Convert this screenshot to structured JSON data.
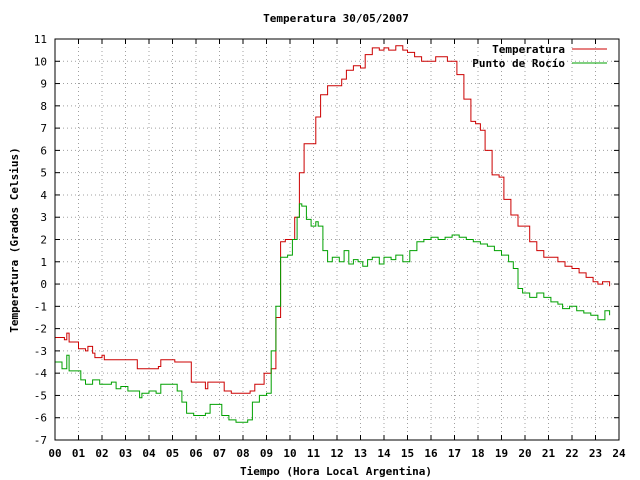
{
  "chart_data": {
    "type": "line",
    "title": "Temperatura 30/05/2007",
    "xlabel": "Tiempo (Hora Local Argentina)",
    "ylabel": "Temperatura (Grados Celsius)",
    "xlim": [
      0,
      24
    ],
    "ylim": [
      -7,
      11
    ],
    "x_ticks": [
      "00",
      "01",
      "02",
      "03",
      "04",
      "05",
      "06",
      "07",
      "08",
      "09",
      "10",
      "11",
      "12",
      "13",
      "14",
      "15",
      "16",
      "17",
      "18",
      "19",
      "20",
      "21",
      "22",
      "23",
      "24"
    ],
    "y_ticks": [
      -7,
      -6,
      -5,
      -4,
      -3,
      -2,
      -1,
      0,
      1,
      2,
      3,
      4,
      5,
      6,
      7,
      8,
      9,
      10,
      11
    ],
    "grid": true,
    "legend_position": "top-right",
    "series": [
      {
        "name": "Temperatura",
        "color": "#cc0000",
        "x": [
          0.0,
          0.4,
          0.5,
          0.6,
          0.9,
          1.0,
          1.3,
          1.4,
          1.6,
          1.7,
          2.0,
          2.1,
          2.6,
          3.0,
          3.5,
          4.0,
          4.4,
          4.5,
          5.0,
          5.1,
          5.5,
          5.8,
          6.2,
          6.4,
          6.5,
          7.0,
          7.2,
          7.5,
          7.8,
          8.1,
          8.3,
          8.5,
          8.9,
          9.2,
          9.4,
          9.6,
          9.8,
          10.0,
          10.2,
          10.4,
          10.6,
          10.9,
          11.1,
          11.3,
          11.6,
          11.9,
          12.2,
          12.4,
          12.7,
          13.0,
          13.2,
          13.5,
          13.8,
          14.0,
          14.2,
          14.5,
          14.8,
          15.0,
          15.3,
          15.6,
          15.9,
          16.2,
          16.4,
          16.7,
          16.9,
          17.1,
          17.4,
          17.7,
          17.9,
          18.1,
          18.3,
          18.6,
          18.9,
          19.1,
          19.4,
          19.7,
          19.9,
          20.2,
          20.5,
          20.8,
          21.1,
          21.4,
          21.7,
          22.0,
          22.3,
          22.6,
          22.9,
          23.1,
          23.3,
          23.5,
          23.6
        ],
        "y": [
          -2.4,
          -2.5,
          -2.2,
          -2.6,
          -2.6,
          -2.9,
          -3.0,
          -2.8,
          -3.1,
          -3.3,
          -3.2,
          -3.4,
          -3.4,
          -3.4,
          -3.8,
          -3.8,
          -3.7,
          -3.4,
          -3.4,
          -3.5,
          -3.5,
          -4.4,
          -4.4,
          -4.7,
          -4.4,
          -4.4,
          -4.8,
          -4.9,
          -4.9,
          -4.9,
          -4.8,
          -4.5,
          -4.0,
          -3.8,
          -1.5,
          1.9,
          2.0,
          2.0,
          3.0,
          5.0,
          6.3,
          6.3,
          7.5,
          8.5,
          8.9,
          8.9,
          9.2,
          9.6,
          9.8,
          9.7,
          10.3,
          10.6,
          10.5,
          10.6,
          10.5,
          10.7,
          10.5,
          10.4,
          10.2,
          10.0,
          10.0,
          10.2,
          10.2,
          10.0,
          10.0,
          9.4,
          8.3,
          7.3,
          7.2,
          6.9,
          6.0,
          4.9,
          4.8,
          3.8,
          3.1,
          2.6,
          2.6,
          1.9,
          1.5,
          1.2,
          1.2,
          1.0,
          0.8,
          0.7,
          0.5,
          0.3,
          0.1,
          0.0,
          0.1,
          0.1,
          -0.1
        ]
      },
      {
        "name": "Punto de Rocío",
        "color": "#00a000",
        "x": [
          0.0,
          0.3,
          0.5,
          0.6,
          0.9,
          1.1,
          1.3,
          1.6,
          1.9,
          2.1,
          2.4,
          2.6,
          2.8,
          3.1,
          3.4,
          3.6,
          3.7,
          4.0,
          4.3,
          4.5,
          5.0,
          5.2,
          5.4,
          5.6,
          5.9,
          6.1,
          6.4,
          6.6,
          6.8,
          7.1,
          7.4,
          7.7,
          8.0,
          8.2,
          8.4,
          8.7,
          9.0,
          9.2,
          9.4,
          9.6,
          9.9,
          10.1,
          10.3,
          10.4,
          10.5,
          10.7,
          10.9,
          11.1,
          11.2,
          11.4,
          11.6,
          11.8,
          12.1,
          12.3,
          12.5,
          12.7,
          12.9,
          13.1,
          13.3,
          13.5,
          13.8,
          14.0,
          14.3,
          14.5,
          14.8,
          15.1,
          15.4,
          15.7,
          16.0,
          16.3,
          16.6,
          16.9,
          17.2,
          17.5,
          17.8,
          18.1,
          18.4,
          18.7,
          19.0,
          19.3,
          19.5,
          19.7,
          19.9,
          20.2,
          20.5,
          20.8,
          21.1,
          21.4,
          21.6,
          21.9,
          22.2,
          22.5,
          22.8,
          23.1,
          23.3,
          23.4,
          23.6
        ],
        "y": [
          -3.5,
          -3.8,
          -3.2,
          -3.9,
          -3.9,
          -4.3,
          -4.5,
          -4.3,
          -4.5,
          -4.5,
          -4.4,
          -4.7,
          -4.6,
          -4.8,
          -4.8,
          -5.1,
          -4.9,
          -4.8,
          -4.9,
          -4.5,
          -4.5,
          -4.8,
          -5.3,
          -5.8,
          -5.9,
          -5.9,
          -5.8,
          -5.4,
          -5.4,
          -5.9,
          -6.1,
          -6.2,
          -6.2,
          -6.1,
          -5.3,
          -5.0,
          -4.9,
          -3.0,
          -1.0,
          1.2,
          1.3,
          2.0,
          3.0,
          3.6,
          3.5,
          2.9,
          2.6,
          2.8,
          2.6,
          1.5,
          1.0,
          1.2,
          1.0,
          1.5,
          0.9,
          1.1,
          1.0,
          0.8,
          1.1,
          1.2,
          0.9,
          1.2,
          1.1,
          1.3,
          1.0,
          1.5,
          1.9,
          2.0,
          2.1,
          2.0,
          2.1,
          2.2,
          2.1,
          2.0,
          1.9,
          1.8,
          1.7,
          1.5,
          1.3,
          1.0,
          0.7,
          -0.2,
          -0.4,
          -0.6,
          -0.4,
          -0.6,
          -0.8,
          -0.9,
          -1.1,
          -1.0,
          -1.2,
          -1.3,
          -1.4,
          -1.6,
          -1.6,
          -1.2,
          -1.4
        ]
      }
    ]
  }
}
